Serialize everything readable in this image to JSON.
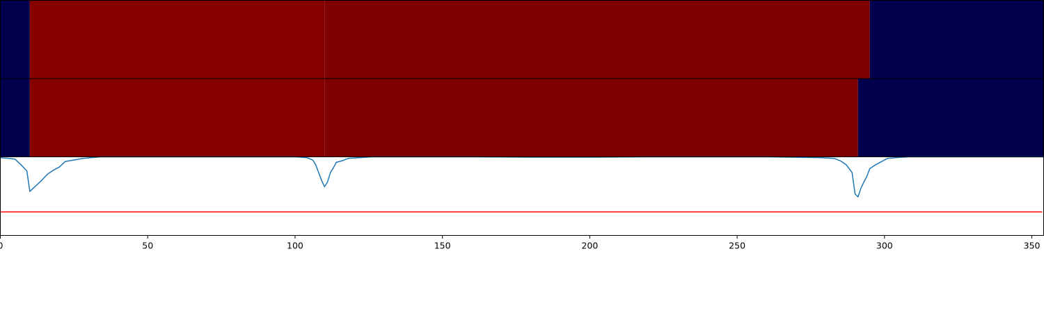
{
  "chart_data": {
    "type": "heatmap",
    "title": "",
    "xlabel": "",
    "ylabel": "",
    "xlim": [
      0,
      354
    ],
    "x_ticks": [
      0,
      50,
      100,
      150,
      200,
      250,
      300,
      350
    ],
    "x_tick_labels": [
      "0",
      "50",
      "100",
      "150",
      "200",
      "250",
      "300",
      "350"
    ],
    "segment_tracks": [
      {
        "segments": [
          {
            "start": 0,
            "end": 10,
            "color": "#00004c"
          },
          {
            "start": 10,
            "end": 110,
            "color": "#870000"
          },
          {
            "start": 110,
            "end": 295,
            "color": "#800000"
          },
          {
            "start": 295,
            "end": 354,
            "color": "#00004c"
          }
        ]
      },
      {
        "segments": [
          {
            "start": 0,
            "end": 10,
            "color": "#00004c"
          },
          {
            "start": 10,
            "end": 110,
            "color": "#870000"
          },
          {
            "start": 110,
            "end": 291,
            "color": "#800000"
          },
          {
            "start": 291,
            "end": 354,
            "color": "#00004c"
          }
        ]
      }
    ],
    "line_plot": {
      "ylim": [
        0,
        1
      ],
      "threshold": 0.3,
      "series": [
        {
          "color": "#1f77b4",
          "points": [
            [
              0,
              0.99
            ],
            [
              3,
              0.98
            ],
            [
              5,
              0.97
            ],
            [
              7,
              0.9
            ],
            [
              9,
              0.82
            ],
            [
              10,
              0.56
            ],
            [
              12,
              0.63
            ],
            [
              14,
              0.7
            ],
            [
              16,
              0.78
            ],
            [
              18,
              0.83
            ],
            [
              20,
              0.87
            ],
            [
              22,
              0.94
            ],
            [
              25,
              0.96
            ],
            [
              28,
              0.98
            ],
            [
              31,
              0.99
            ],
            [
              34,
              1.0
            ],
            [
              40,
              1.0
            ],
            [
              60,
              1.0
            ],
            [
              80,
              1.0
            ],
            [
              100,
              1.0
            ],
            [
              104,
              0.99
            ],
            [
              106,
              0.96
            ],
            [
              107,
              0.9
            ],
            [
              108,
              0.8
            ],
            [
              109,
              0.7
            ],
            [
              110,
              0.62
            ],
            [
              111,
              0.68
            ],
            [
              112,
              0.8
            ],
            [
              113,
              0.86
            ],
            [
              114,
              0.93
            ],
            [
              116,
              0.95
            ],
            [
              118,
              0.98
            ],
            [
              122,
              0.99
            ],
            [
              126,
              1.0
            ],
            [
              140,
              1.0
            ],
            [
              160,
              1.0
            ],
            [
              180,
              0.995
            ],
            [
              200,
              0.995
            ],
            [
              220,
              1.0
            ],
            [
              240,
              1.0
            ],
            [
              260,
              1.0
            ],
            [
              278,
              0.99
            ],
            [
              283,
              0.98
            ],
            [
              285,
              0.95
            ],
            [
              287,
              0.9
            ],
            [
              289,
              0.8
            ],
            [
              290,
              0.53
            ],
            [
              291,
              0.49
            ],
            [
              292,
              0.6
            ],
            [
              293,
              0.68
            ],
            [
              294,
              0.75
            ],
            [
              295,
              0.85
            ],
            [
              297,
              0.9
            ],
            [
              299,
              0.94
            ],
            [
              301,
              0.98
            ],
            [
              304,
              0.99
            ],
            [
              308,
              1.0
            ],
            [
              320,
              1.0
            ],
            [
              340,
              1.0
            ],
            [
              354,
              1.0
            ]
          ]
        }
      ]
    }
  }
}
